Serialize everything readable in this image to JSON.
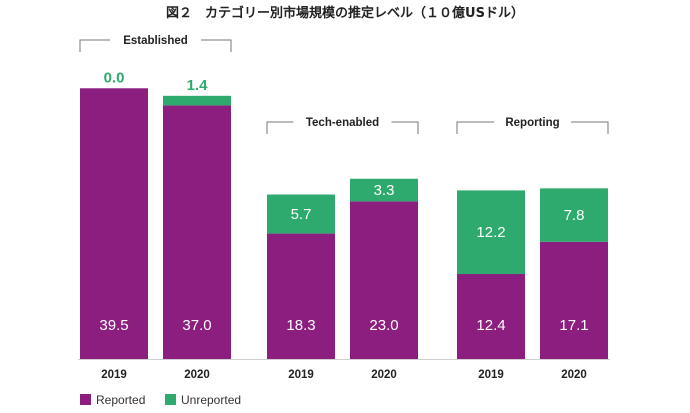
{
  "chart_data": {
    "type": "bar",
    "stacked": true,
    "title": "図２　カテゴリー別市場規模の推定レベル（１０億USドル）",
    "groups": [
      {
        "name": "Established",
        "categories": [
          "2019",
          "2020"
        ],
        "series": [
          {
            "name": "Reported",
            "values": [
              39.5,
              37.0
            ],
            "labels": [
              "39.5",
              "37.0"
            ]
          },
          {
            "name": "Unreported",
            "values": [
              0.0,
              1.4
            ],
            "labels": [
              "0.0",
              "1.4"
            ]
          }
        ]
      },
      {
        "name": "Tech-enabled",
        "categories": [
          "2019",
          "2020"
        ],
        "series": [
          {
            "name": "Reported",
            "values": [
              18.3,
              23.0
            ],
            "labels": [
              "18.3",
              "23.0"
            ]
          },
          {
            "name": "Unreported",
            "values": [
              5.7,
              3.3
            ],
            "labels": [
              "5.7",
              "3.3"
            ]
          }
        ]
      },
      {
        "name": "Reporting",
        "categories": [
          "2019",
          "2020"
        ],
        "series": [
          {
            "name": "Reported",
            "values": [
              12.4,
              17.1
            ],
            "labels": [
              "12.4",
              "17.1"
            ]
          },
          {
            "name": "Unreported",
            "values": [
              12.2,
              7.8
            ],
            "labels": [
              "12.2",
              "7.8"
            ]
          }
        ]
      }
    ],
    "legend": [
      {
        "name": "Reported",
        "color": "#8b1e7e"
      },
      {
        "name": "Unreported",
        "color": "#2eaa6e"
      }
    ],
    "legend_position": "bottom-left",
    "colors": {
      "reported": "#8b1e7e",
      "unreported": "#2eaa6e"
    },
    "ylim": [
      0,
      41
    ]
  }
}
